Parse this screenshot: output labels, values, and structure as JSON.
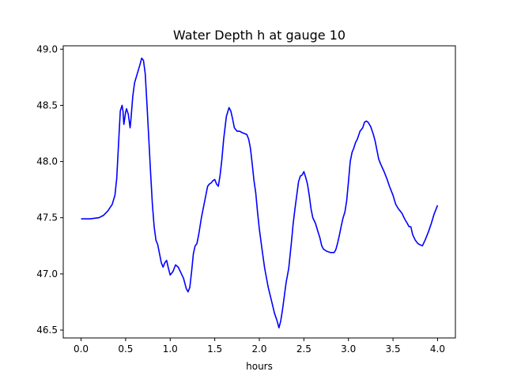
{
  "chart_data": {
    "type": "line",
    "title": "Water Depth h at gauge 10",
    "xlabel": "hours",
    "ylabel": "",
    "xlim": [
      -0.2,
      4.2
    ],
    "ylim": [
      46.43,
      49.03
    ],
    "grid": false,
    "xticks": [
      0.0,
      0.5,
      1.0,
      1.5,
      2.0,
      2.5,
      3.0,
      3.5,
      4.0
    ],
    "xtick_labels": [
      "0.0",
      "0.5",
      "1.0",
      "1.5",
      "2.0",
      "2.5",
      "3.0",
      "3.5",
      "4.0"
    ],
    "yticks": [
      46.5,
      47.0,
      47.5,
      48.0,
      48.5,
      49.0
    ],
    "ytick_labels": [
      "46.5",
      "47.0",
      "47.5",
      "48.0",
      "48.5",
      "49.0"
    ],
    "series": [
      {
        "color": "#0000ff",
        "x": [
          0.0,
          0.1,
          0.2,
          0.25,
          0.3,
          0.35,
          0.38,
          0.4,
          0.42,
          0.44,
          0.46,
          0.47,
          0.48,
          0.5,
          0.51,
          0.53,
          0.55,
          0.56,
          0.58,
          0.6,
          0.63,
          0.66,
          0.68,
          0.7,
          0.72,
          0.74,
          0.76,
          0.78,
          0.8,
          0.82,
          0.84,
          0.86,
          0.88,
          0.9,
          0.92,
          0.94,
          0.96,
          0.98,
          1.0,
          1.03,
          1.06,
          1.09,
          1.12,
          1.15,
          1.18,
          1.2,
          1.22,
          1.24,
          1.26,
          1.28,
          1.3,
          1.32,
          1.35,
          1.38,
          1.4,
          1.42,
          1.44,
          1.46,
          1.48,
          1.5,
          1.52,
          1.54,
          1.56,
          1.58,
          1.6,
          1.63,
          1.66,
          1.68,
          1.7,
          1.72,
          1.75,
          1.78,
          1.8,
          1.83,
          1.86,
          1.88,
          1.9,
          1.92,
          1.94,
          1.96,
          1.98,
          2.0,
          2.03,
          2.06,
          2.1,
          2.14,
          2.17,
          2.2,
          2.22,
          2.24,
          2.26,
          2.28,
          2.3,
          2.33,
          2.36,
          2.38,
          2.4,
          2.42,
          2.44,
          2.46,
          2.48,
          2.5,
          2.52,
          2.54,
          2.56,
          2.58,
          2.6,
          2.63,
          2.66,
          2.68,
          2.7,
          2.72,
          2.74,
          2.76,
          2.8,
          2.84,
          2.86,
          2.88,
          2.9,
          2.92,
          2.94,
          2.96,
          2.98,
          3.0,
          3.02,
          3.04,
          3.06,
          3.08,
          3.1,
          3.13,
          3.16,
          3.18,
          3.2,
          3.22,
          3.25,
          3.28,
          3.3,
          3.32,
          3.34,
          3.36,
          3.4,
          3.43,
          3.46,
          3.5,
          3.53,
          3.56,
          3.6,
          3.63,
          3.66,
          3.68,
          3.7,
          3.72,
          3.75,
          3.78,
          3.8,
          3.83,
          3.86,
          3.9,
          3.93,
          3.96,
          4.0
        ],
        "y": [
          47.49,
          47.49,
          47.5,
          47.52,
          47.56,
          47.62,
          47.7,
          47.85,
          48.15,
          48.45,
          48.5,
          48.45,
          48.33,
          48.44,
          48.47,
          48.42,
          48.3,
          48.38,
          48.58,
          48.7,
          48.78,
          48.86,
          48.92,
          48.9,
          48.78,
          48.5,
          48.2,
          47.9,
          47.62,
          47.42,
          47.3,
          47.26,
          47.18,
          47.1,
          47.06,
          47.1,
          47.12,
          47.05,
          46.99,
          47.02,
          47.08,
          47.06,
          47.01,
          46.96,
          46.87,
          46.84,
          46.88,
          47.02,
          47.18,
          47.25,
          47.27,
          47.35,
          47.5,
          47.62,
          47.7,
          47.78,
          47.8,
          47.81,
          47.83,
          47.84,
          47.8,
          47.78,
          47.88,
          48.02,
          48.2,
          48.4,
          48.48,
          48.45,
          48.38,
          48.3,
          48.27,
          48.27,
          48.26,
          48.25,
          48.24,
          48.2,
          48.12,
          47.98,
          47.83,
          47.72,
          47.55,
          47.4,
          47.22,
          47.05,
          46.88,
          46.75,
          46.65,
          46.58,
          46.52,
          46.58,
          46.68,
          46.8,
          46.92,
          47.05,
          47.28,
          47.45,
          47.58,
          47.7,
          47.82,
          47.87,
          47.88,
          47.91,
          47.86,
          47.8,
          47.7,
          47.58,
          47.5,
          47.45,
          47.37,
          47.32,
          47.25,
          47.22,
          47.21,
          47.2,
          47.19,
          47.19,
          47.22,
          47.28,
          47.35,
          47.43,
          47.5,
          47.55,
          47.65,
          47.82,
          48.0,
          48.08,
          48.12,
          48.17,
          48.2,
          48.27,
          48.3,
          48.35,
          48.36,
          48.35,
          48.31,
          48.24,
          48.18,
          48.1,
          48.02,
          47.98,
          47.91,
          47.85,
          47.78,
          47.7,
          47.62,
          47.58,
          47.54,
          47.49,
          47.45,
          47.42,
          47.42,
          47.35,
          47.3,
          47.27,
          47.26,
          47.25,
          47.3,
          47.38,
          47.45,
          47.53,
          47.61
        ]
      }
    ]
  }
}
